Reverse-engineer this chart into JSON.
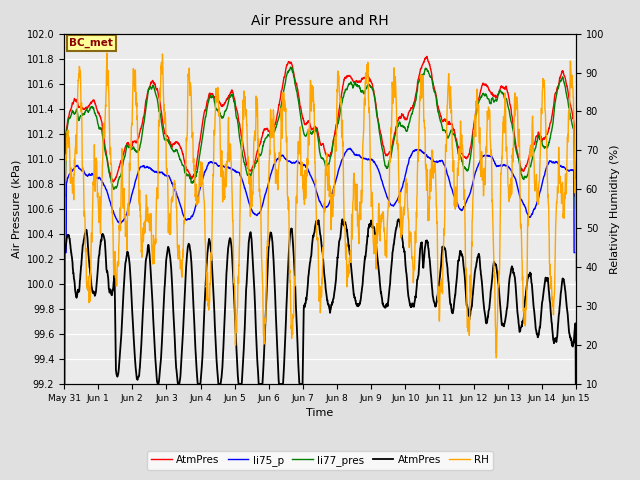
{
  "title": "Air Pressure and RH",
  "xlabel": "Time",
  "ylabel_left": "Air Pressure (kPa)",
  "ylabel_right": "Relativity Humidity (%)",
  "ylim_left": [
    99.2,
    102.0
  ],
  "ylim_right": [
    10,
    100
  ],
  "yticks_left": [
    99.2,
    99.4,
    99.6,
    99.8,
    100.0,
    100.2,
    100.4,
    100.6,
    100.8,
    101.0,
    101.2,
    101.4,
    101.6,
    101.8,
    102.0
  ],
  "yticks_right": [
    10,
    20,
    30,
    40,
    50,
    60,
    70,
    80,
    90,
    100
  ],
  "xtick_labels": [
    "May 31",
    "Jun 1",
    "Jun 2",
    "Jun 3",
    "Jun 4",
    "Jun 5",
    "Jun 6",
    "Jun 7",
    "Jun 8",
    "Jun 9",
    "Jun 10",
    "Jun 11",
    "Jun 12",
    "Jun 13",
    "Jun 14",
    "Jun 15"
  ],
  "annotation_text": "BC_met",
  "annotation_color": "#8B0000",
  "annotation_bg": "#FFFF99",
  "annotation_border": "#8B6914",
  "legend_entries": [
    "AtmPres",
    "li75_p",
    "li77_pres",
    "AtmPres",
    "RH"
  ],
  "line_colors": [
    "red",
    "blue",
    "green",
    "black",
    "orange"
  ],
  "bg_color": "#E0E0E0",
  "plot_bg": "#EBEBEB",
  "grid_color": "white"
}
